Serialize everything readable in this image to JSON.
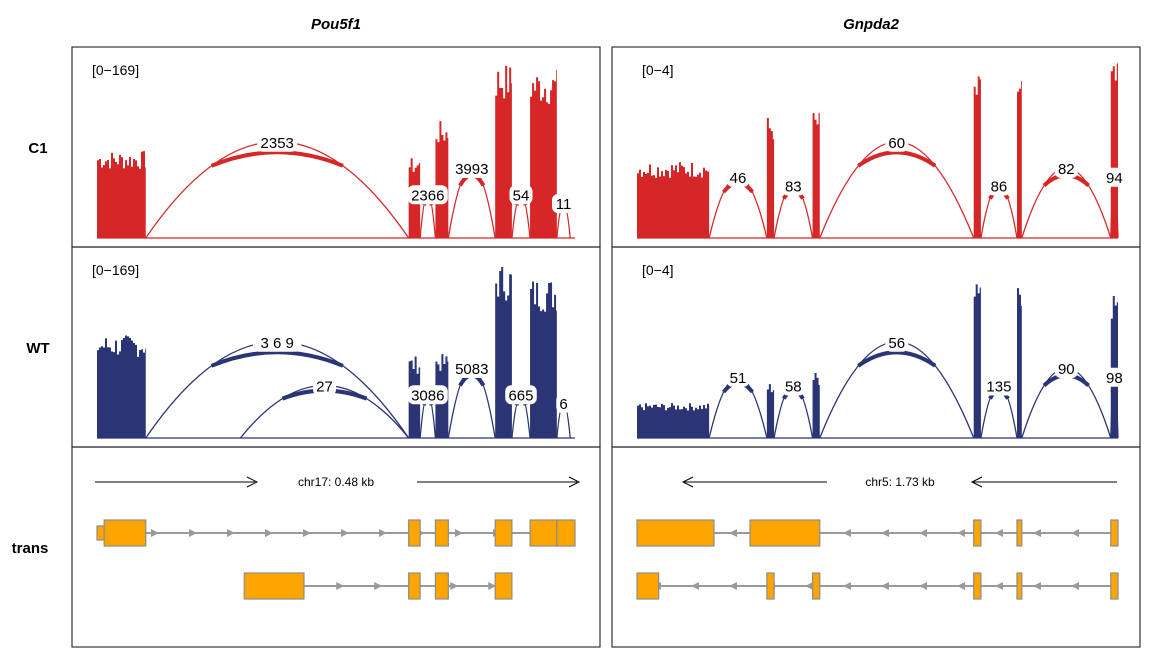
{
  "colors": {
    "c1": "#d62728",
    "wt": "#2b3474",
    "exon": "#ffa500",
    "exon_border": "#8c8c8c",
    "intron": "#9a9a9a",
    "frame": "#333333"
  },
  "rows": [
    "C1",
    "WT",
    "trans"
  ],
  "panels": [
    {
      "gene": "Pou5f1",
      "range_label": "[0−169]",
      "locus_label": "chr17: 0.48 kb",
      "strand": "+",
      "coverage": {
        "C1": [
          {
            "start": 0.0,
            "end": 0.102,
            "h": 0.5
          },
          {
            "start": 0.652,
            "end": 0.676,
            "h": 0.46
          },
          {
            "start": 0.708,
            "end": 0.735,
            "h": 0.67
          },
          {
            "start": 0.833,
            "end": 0.868,
            "h": 1.0
          },
          {
            "start": 0.906,
            "end": 0.962,
            "h": 0.97
          }
        ],
        "WT": [
          {
            "start": 0.0,
            "end": 0.102,
            "h": 0.59
          },
          {
            "start": 0.652,
            "end": 0.676,
            "h": 0.47
          },
          {
            "start": 0.708,
            "end": 0.735,
            "h": 0.48
          },
          {
            "start": 0.833,
            "end": 0.868,
            "h": 1.0
          },
          {
            "start": 0.906,
            "end": 0.962,
            "h": 0.92
          }
        ]
      },
      "junctions": {
        "C1": [
          {
            "from": 0.102,
            "to": 0.652,
            "label": "2353",
            "height": 0.55
          },
          {
            "from": 0.676,
            "to": 0.708,
            "label": "2366",
            "height": 0.25
          },
          {
            "from": 0.735,
            "to": 0.833,
            "label": "3993",
            "height": 0.4
          },
          {
            "from": 0.868,
            "to": 0.906,
            "label": "54",
            "height": 0.25
          },
          {
            "from": 0.962,
            "to": 0.99,
            "label": "11",
            "height": 0.2
          }
        ],
        "WT": [
          {
            "from": 0.102,
            "to": 0.652,
            "label": "3 6 9",
            "height": 0.55
          },
          {
            "from": 0.3,
            "to": 0.652,
            "label": "27",
            "height": 0.3
          },
          {
            "from": 0.676,
            "to": 0.708,
            "label": "3086",
            "height": 0.25
          },
          {
            "from": 0.735,
            "to": 0.833,
            "label": "5083",
            "height": 0.4
          },
          {
            "from": 0.868,
            "to": 0.906,
            "label": "665",
            "height": 0.25
          },
          {
            "from": 0.962,
            "to": 0.99,
            "label": "6",
            "height": 0.2
          }
        ]
      },
      "transcripts": [
        {
          "line": [
            0.0,
            1.0
          ],
          "exons": [
            [
              0.0,
              0.015
            ],
            [
              0.015,
              0.102
            ],
            [
              0.652,
              0.676
            ],
            [
              0.708,
              0.735
            ],
            [
              0.833,
              0.868
            ],
            [
              0.906,
              0.962
            ],
            [
              0.962,
              1.0
            ]
          ]
        },
        {
          "line": [
            0.308,
            0.868
          ],
          "exons": [
            [
              0.308,
              0.433
            ],
            [
              0.652,
              0.676
            ],
            [
              0.708,
              0.735
            ],
            [
              0.833,
              0.868
            ]
          ]
        }
      ]
    },
    {
      "gene": "Gnpda2",
      "range_label": "[0−4]",
      "locus_label": "chr5: 1.73 kb",
      "strand": "-",
      "coverage": {
        "C1": [
          {
            "start": 0.0,
            "end": 0.15,
            "h": 0.44
          },
          {
            "start": 0.27,
            "end": 0.285,
            "h": 0.7
          },
          {
            "start": 0.365,
            "end": 0.38,
            "h": 0.73
          },
          {
            "start": 0.7,
            "end": 0.715,
            "h": 0.93
          },
          {
            "start": 0.79,
            "end": 0.8,
            "h": 0.96
          },
          {
            "start": 0.985,
            "end": 1.0,
            "h": 1.0
          }
        ],
        "WT": [
          {
            "start": 0.0,
            "end": 0.15,
            "h": 0.2
          },
          {
            "start": 0.27,
            "end": 0.285,
            "h": 0.32
          },
          {
            "start": 0.365,
            "end": 0.38,
            "h": 0.38
          },
          {
            "start": 0.7,
            "end": 0.715,
            "h": 0.99
          },
          {
            "start": 0.79,
            "end": 0.8,
            "h": 0.96
          },
          {
            "start": 0.985,
            "end": 1.0,
            "h": 0.86
          }
        ]
      },
      "junctions": {
        "C1": [
          {
            "from": 0.15,
            "to": 0.27,
            "label": "46",
            "height": 0.35
          },
          {
            "from": 0.285,
            "to": 0.365,
            "label": "83",
            "height": 0.3
          },
          {
            "from": 0.38,
            "to": 0.7,
            "label": "60",
            "height": 0.55
          },
          {
            "from": 0.715,
            "to": 0.79,
            "label": "86",
            "height": 0.3
          },
          {
            "from": 0.8,
            "to": 0.985,
            "label": "82",
            "height": 0.4
          },
          {
            "from": 0.985,
            "to": 1.0,
            "label": "94",
            "height": 0.35
          }
        ],
        "WT": [
          {
            "from": 0.15,
            "to": 0.27,
            "label": "51",
            "height": 0.35
          },
          {
            "from": 0.285,
            "to": 0.365,
            "label": "58",
            "height": 0.3
          },
          {
            "from": 0.38,
            "to": 0.7,
            "label": "56",
            "height": 0.55
          },
          {
            "from": 0.715,
            "to": 0.79,
            "label": "135",
            "height": 0.3
          },
          {
            "from": 0.8,
            "to": 0.985,
            "label": "90",
            "height": 0.4
          },
          {
            "from": 0.985,
            "to": 1.0,
            "label": "98",
            "height": 0.35
          }
        ]
      },
      "transcripts": [
        {
          "line": [
            0.0,
            1.0
          ],
          "exons": [
            [
              0.0,
              0.16
            ],
            [
              0.235,
              0.38
            ],
            [
              0.7,
              0.715
            ],
            [
              0.79,
              0.8
            ],
            [
              0.985,
              1.0
            ]
          ]
        },
        {
          "line": [
            0.0,
            1.0
          ],
          "exons": [
            [
              0.0,
              0.045
            ],
            [
              0.27,
              0.285
            ],
            [
              0.365,
              0.38
            ],
            [
              0.7,
              0.715
            ],
            [
              0.79,
              0.8
            ],
            [
              0.985,
              1.0
            ]
          ]
        }
      ]
    }
  ]
}
